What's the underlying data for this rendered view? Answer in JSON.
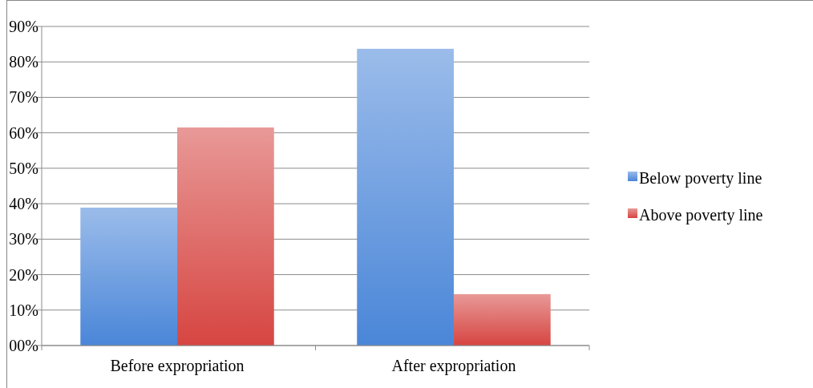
{
  "chart_data": {
    "type": "bar",
    "categories": [
      "Before expropriation",
      "After expropriation"
    ],
    "series": [
      {
        "name": "Below poverty line",
        "color": "#4a86d8",
        "values": [
          38.9,
          83.7
        ]
      },
      {
        "name": "Above poverty line",
        "color": "#d64541",
        "values": [
          61.5,
          14.5
        ]
      }
    ],
    "ylim": [
      0,
      90
    ],
    "yticks": [
      {
        "value": 0,
        "label": "00%"
      },
      {
        "value": 10,
        "label": "10%"
      },
      {
        "value": 20,
        "label": "20%"
      },
      {
        "value": 30,
        "label": "30%"
      },
      {
        "value": 40,
        "label": "40%"
      },
      {
        "value": 50,
        "label": "50%"
      },
      {
        "value": 60,
        "label": "60%"
      },
      {
        "value": 70,
        "label": "70%"
      },
      {
        "value": 80,
        "label": "80%"
      },
      {
        "value": 90,
        "label": "90%"
      }
    ],
    "grid": "y",
    "legend": "right"
  }
}
